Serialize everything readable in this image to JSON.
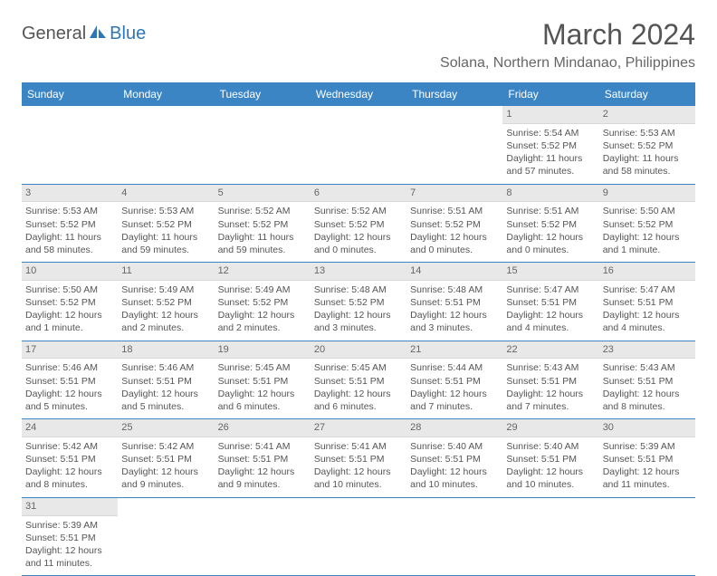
{
  "logo": {
    "part1": "General",
    "part2": "Blue"
  },
  "title": "March 2024",
  "location": "Solana, Northern Mindanao, Philippines",
  "colors": {
    "header_bg": "#3b85c4",
    "header_fg": "#ffffff",
    "daynum_bg": "#e8e8e8",
    "border": "#3b85c4",
    "text": "#555555",
    "logo_blue": "#2c77b8"
  },
  "weekdays": [
    "Sunday",
    "Monday",
    "Tuesday",
    "Wednesday",
    "Thursday",
    "Friday",
    "Saturday"
  ],
  "weeks": [
    [
      null,
      null,
      null,
      null,
      null,
      {
        "d": "1",
        "sr": "Sunrise: 5:54 AM",
        "ss": "Sunset: 5:52 PM",
        "dl": "Daylight: 11 hours and 57 minutes."
      },
      {
        "d": "2",
        "sr": "Sunrise: 5:53 AM",
        "ss": "Sunset: 5:52 PM",
        "dl": "Daylight: 11 hours and 58 minutes."
      }
    ],
    [
      {
        "d": "3",
        "sr": "Sunrise: 5:53 AM",
        "ss": "Sunset: 5:52 PM",
        "dl": "Daylight: 11 hours and 58 minutes."
      },
      {
        "d": "4",
        "sr": "Sunrise: 5:53 AM",
        "ss": "Sunset: 5:52 PM",
        "dl": "Daylight: 11 hours and 59 minutes."
      },
      {
        "d": "5",
        "sr": "Sunrise: 5:52 AM",
        "ss": "Sunset: 5:52 PM",
        "dl": "Daylight: 11 hours and 59 minutes."
      },
      {
        "d": "6",
        "sr": "Sunrise: 5:52 AM",
        "ss": "Sunset: 5:52 PM",
        "dl": "Daylight: 12 hours and 0 minutes."
      },
      {
        "d": "7",
        "sr": "Sunrise: 5:51 AM",
        "ss": "Sunset: 5:52 PM",
        "dl": "Daylight: 12 hours and 0 minutes."
      },
      {
        "d": "8",
        "sr": "Sunrise: 5:51 AM",
        "ss": "Sunset: 5:52 PM",
        "dl": "Daylight: 12 hours and 0 minutes."
      },
      {
        "d": "9",
        "sr": "Sunrise: 5:50 AM",
        "ss": "Sunset: 5:52 PM",
        "dl": "Daylight: 12 hours and 1 minute."
      }
    ],
    [
      {
        "d": "10",
        "sr": "Sunrise: 5:50 AM",
        "ss": "Sunset: 5:52 PM",
        "dl": "Daylight: 12 hours and 1 minute."
      },
      {
        "d": "11",
        "sr": "Sunrise: 5:49 AM",
        "ss": "Sunset: 5:52 PM",
        "dl": "Daylight: 12 hours and 2 minutes."
      },
      {
        "d": "12",
        "sr": "Sunrise: 5:49 AM",
        "ss": "Sunset: 5:52 PM",
        "dl": "Daylight: 12 hours and 2 minutes."
      },
      {
        "d": "13",
        "sr": "Sunrise: 5:48 AM",
        "ss": "Sunset: 5:52 PM",
        "dl": "Daylight: 12 hours and 3 minutes."
      },
      {
        "d": "14",
        "sr": "Sunrise: 5:48 AM",
        "ss": "Sunset: 5:51 PM",
        "dl": "Daylight: 12 hours and 3 minutes."
      },
      {
        "d": "15",
        "sr": "Sunrise: 5:47 AM",
        "ss": "Sunset: 5:51 PM",
        "dl": "Daylight: 12 hours and 4 minutes."
      },
      {
        "d": "16",
        "sr": "Sunrise: 5:47 AM",
        "ss": "Sunset: 5:51 PM",
        "dl": "Daylight: 12 hours and 4 minutes."
      }
    ],
    [
      {
        "d": "17",
        "sr": "Sunrise: 5:46 AM",
        "ss": "Sunset: 5:51 PM",
        "dl": "Daylight: 12 hours and 5 minutes."
      },
      {
        "d": "18",
        "sr": "Sunrise: 5:46 AM",
        "ss": "Sunset: 5:51 PM",
        "dl": "Daylight: 12 hours and 5 minutes."
      },
      {
        "d": "19",
        "sr": "Sunrise: 5:45 AM",
        "ss": "Sunset: 5:51 PM",
        "dl": "Daylight: 12 hours and 6 minutes."
      },
      {
        "d": "20",
        "sr": "Sunrise: 5:45 AM",
        "ss": "Sunset: 5:51 PM",
        "dl": "Daylight: 12 hours and 6 minutes."
      },
      {
        "d": "21",
        "sr": "Sunrise: 5:44 AM",
        "ss": "Sunset: 5:51 PM",
        "dl": "Daylight: 12 hours and 7 minutes."
      },
      {
        "d": "22",
        "sr": "Sunrise: 5:43 AM",
        "ss": "Sunset: 5:51 PM",
        "dl": "Daylight: 12 hours and 7 minutes."
      },
      {
        "d": "23",
        "sr": "Sunrise: 5:43 AM",
        "ss": "Sunset: 5:51 PM",
        "dl": "Daylight: 12 hours and 8 minutes."
      }
    ],
    [
      {
        "d": "24",
        "sr": "Sunrise: 5:42 AM",
        "ss": "Sunset: 5:51 PM",
        "dl": "Daylight: 12 hours and 8 minutes."
      },
      {
        "d": "25",
        "sr": "Sunrise: 5:42 AM",
        "ss": "Sunset: 5:51 PM",
        "dl": "Daylight: 12 hours and 9 minutes."
      },
      {
        "d": "26",
        "sr": "Sunrise: 5:41 AM",
        "ss": "Sunset: 5:51 PM",
        "dl": "Daylight: 12 hours and 9 minutes."
      },
      {
        "d": "27",
        "sr": "Sunrise: 5:41 AM",
        "ss": "Sunset: 5:51 PM",
        "dl": "Daylight: 12 hours and 10 minutes."
      },
      {
        "d": "28",
        "sr": "Sunrise: 5:40 AM",
        "ss": "Sunset: 5:51 PM",
        "dl": "Daylight: 12 hours and 10 minutes."
      },
      {
        "d": "29",
        "sr": "Sunrise: 5:40 AM",
        "ss": "Sunset: 5:51 PM",
        "dl": "Daylight: 12 hours and 10 minutes."
      },
      {
        "d": "30",
        "sr": "Sunrise: 5:39 AM",
        "ss": "Sunset: 5:51 PM",
        "dl": "Daylight: 12 hours and 11 minutes."
      }
    ],
    [
      {
        "d": "31",
        "sr": "Sunrise: 5:39 AM",
        "ss": "Sunset: 5:51 PM",
        "dl": "Daylight: 12 hours and 11 minutes."
      },
      null,
      null,
      null,
      null,
      null,
      null
    ]
  ]
}
